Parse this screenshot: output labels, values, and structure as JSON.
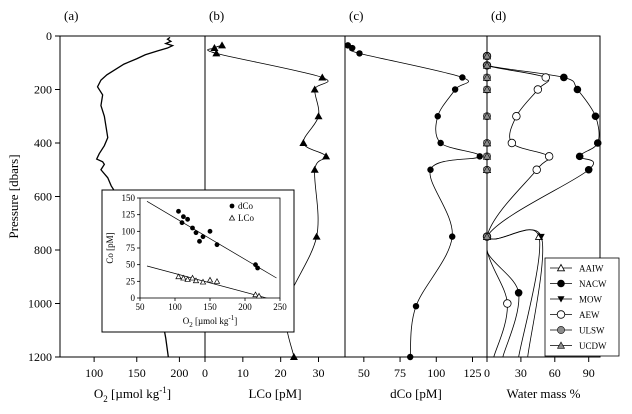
{
  "chart_data": [
    {
      "panel": "(a)",
      "type": "line",
      "xlabel_main": "O",
      "xlabel_sub": "2",
      "xlabel_rest": " [µmol kg",
      "xlabel_sup": "-1",
      "xlabel_end": "]",
      "xlim": [
        60,
        230
      ],
      "x_ticks": [
        100,
        150,
        200
      ],
      "ylabel": "Pressure [dbars]",
      "ylim": [
        0,
        1200
      ],
      "y_ticks": [
        0,
        200,
        400,
        600,
        800,
        1000,
        1200
      ],
      "y_inverted": true,
      "series": [
        {
          "x": [
            189,
            186,
            190,
            184,
            192,
            186,
            175,
            160,
            150,
            135,
            125,
            115,
            108,
            104,
            110,
            108,
            112,
            114,
            116,
            112,
            106,
            103,
            110,
            112,
            108,
            116,
            120,
            130,
            140,
            148,
            155,
            162,
            170,
            176,
            180,
            184,
            187
          ],
          "y": [
            5,
            12,
            20,
            28,
            36,
            45,
            55,
            70,
            85,
            105,
            125,
            145,
            165,
            190,
            220,
            260,
            300,
            340,
            380,
            410,
            440,
            460,
            470,
            480,
            500,
            530,
            560,
            610,
            660,
            720,
            780,
            850,
            920,
            990,
            1060,
            1130,
            1200
          ]
        }
      ]
    },
    {
      "panel": "(b)",
      "type": "line",
      "xlabel": "LCo [pM]",
      "xlim": [
        0,
        37
      ],
      "x_ticks": [
        0,
        10,
        20,
        30
      ],
      "ylim": [
        0,
        1200
      ],
      "y_inverted": true,
      "series": [
        {
          "x": [
            4.5,
            2.5,
            3,
            31,
            29,
            30,
            26,
            32,
            29,
            29.5,
            21.5,
            23.5
          ],
          "y": [
            35,
            45,
            65,
            155,
            200,
            300,
            400,
            450,
            500,
            750,
            1010,
            1200
          ]
        }
      ],
      "inset": {
        "type": "scatter",
        "xlabel_main": "O",
        "xlabel_sub": "2",
        "xlabel_rest": " [µmol kg",
        "xlabel_sup": "-1",
        "xlabel_end": "]",
        "ylabel": "Co [pM]",
        "xlim": [
          50,
          250
        ],
        "ylim": [
          0,
          150
        ],
        "x_ticks": [
          50,
          100,
          150,
          200,
          250
        ],
        "y_ticks": [
          0,
          25,
          50,
          75,
          100,
          125,
          150
        ],
        "legend": [
          "dCo",
          "LCo"
        ],
        "series": [
          {
            "name": "dCo",
            "x": [
              105,
              110,
              112,
              118,
              125,
              130,
              135,
              140,
              150,
              160,
              215,
              218
            ],
            "y": [
              130,
              113,
              122,
              118,
              105,
              98,
              85,
              92,
              100,
              80,
              50,
              45
            ]
          },
          {
            "name": "LCo",
            "x": [
              105,
              112,
              118,
              125,
              130,
              140,
              150,
              160,
              215,
              220
            ],
            "y": [
              32,
              30,
              28,
              30,
              26,
              24,
              27,
              25,
              5,
              3
            ]
          }
        ],
        "fits": [
          {
            "x": [
              60,
              245
            ],
            "y": [
              145,
              30
            ]
          },
          {
            "x": [
              60,
              245
            ],
            "y": [
              48,
              -4
            ]
          }
        ]
      }
    },
    {
      "panel": "(c)",
      "type": "line",
      "xlabel": "dCo [pM]",
      "xlim": [
        37,
        135
      ],
      "x_ticks": [
        50,
        75,
        100,
        125
      ],
      "ylim": [
        0,
        1200
      ],
      "y_inverted": true,
      "series": [
        {
          "x": [
            39,
            42,
            47,
            118,
            113,
            101,
            103,
            130,
            96,
            111,
            86,
            82
          ],
          "y": [
            35,
            45,
            65,
            155,
            200,
            300,
            400,
            450,
            500,
            750,
            1010,
            1200
          ]
        }
      ]
    },
    {
      "panel": "(d)",
      "type": "line",
      "xlabel": "Water mass %",
      "xlim": [
        0,
        100
      ],
      "x_ticks": [
        0,
        30,
        60,
        90
      ],
      "ylim": [
        0,
        1200
      ],
      "y_inverted": true,
      "legend_position": "bottom-right",
      "series": [
        {
          "name": "AAIW",
          "marker": "triangle-open",
          "x": [
            0,
            0,
            0,
            0,
            0,
            0,
            0,
            0,
            0,
            46,
            28
          ],
          "y": [
            75,
            110,
            155,
            200,
            300,
            400,
            450,
            500,
            750,
            750,
            1200
          ]
        },
        {
          "name": "NACW",
          "marker": "circle-filled",
          "x": [
            0,
            0,
            68,
            80,
            96,
            98,
            82,
            90,
            0,
            28,
            14
          ],
          "y": [
            75,
            110,
            155,
            200,
            300,
            400,
            450,
            500,
            750,
            960,
            1200
          ]
        },
        {
          "name": "MOW",
          "marker": "triangle-down-filled",
          "x": [
            0,
            0,
            0,
            0,
            0,
            0,
            0,
            0,
            0,
            48,
            36
          ],
          "y": [
            75,
            110,
            155,
            200,
            300,
            400,
            450,
            500,
            750,
            750,
            1200
          ]
        },
        {
          "name": "AEW",
          "marker": "circle-open",
          "x": [
            0,
            0,
            52,
            45,
            26,
            22,
            55,
            44,
            0,
            18,
            6
          ],
          "y": [
            75,
            110,
            155,
            200,
            300,
            400,
            450,
            500,
            750,
            1000,
            1200
          ]
        },
        {
          "name": "ULSW",
          "marker": "circle-gray",
          "x": [
            0,
            0,
            0,
            0,
            0,
            0,
            0,
            0,
            0
          ],
          "y": [
            75,
            110,
            155,
            200,
            300,
            400,
            450,
            500,
            750
          ]
        },
        {
          "name": "UCDW",
          "marker": "triangle-gray",
          "x": [
            0,
            0,
            0,
            0,
            0,
            0,
            0,
            0,
            0
          ],
          "y": [
            75,
            110,
            155,
            200,
            300,
            400,
            450,
            500,
            750
          ]
        }
      ],
      "legend": [
        "AAIW",
        "NACW",
        "MOW",
        "AEW",
        "ULSW",
        "UCDW"
      ]
    }
  ]
}
